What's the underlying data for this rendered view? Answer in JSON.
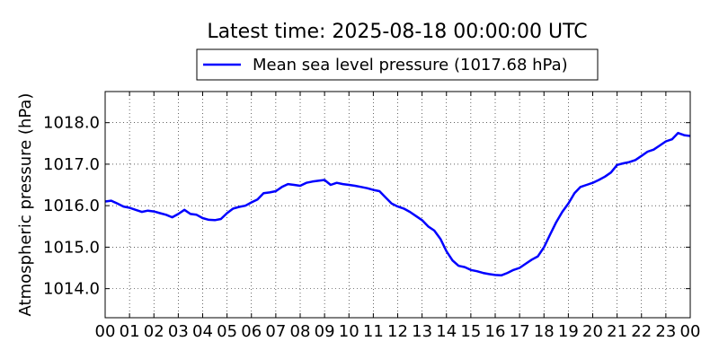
{
  "chart_data": {
    "type": "line",
    "title": "Latest time: 2025-08-18 00:00:00 UTC",
    "xlabel": "",
    "ylabel": "Atmospheric pressure (hPa)",
    "xlim": [
      0,
      24
    ],
    "ylim": [
      1013.3,
      1018.75
    ],
    "x_tick_labels": [
      "00",
      "01",
      "02",
      "03",
      "04",
      "05",
      "06",
      "07",
      "08",
      "09",
      "10",
      "11",
      "12",
      "13",
      "14",
      "15",
      "16",
      "17",
      "18",
      "19",
      "20",
      "21",
      "22",
      "23",
      "00"
    ],
    "y_ticks": [
      1014.0,
      1015.0,
      1016.0,
      1017.0,
      1018.0
    ],
    "y_tick_labels": [
      "1014.0",
      "1015.0",
      "1016.0",
      "1017.0",
      "1018.0"
    ],
    "grid": true,
    "legend_position": "top-center, above plot",
    "series": [
      {
        "name": "Mean sea level pressure (1017.68 hPa)",
        "color": "#0000ff",
        "x": [
          0,
          0.25,
          0.5,
          0.75,
          1.0,
          1.25,
          1.5,
          1.75,
          2.0,
          2.25,
          2.5,
          2.75,
          3.0,
          3.25,
          3.5,
          3.75,
          4.0,
          4.25,
          4.5,
          4.75,
          5.0,
          5.25,
          5.5,
          5.75,
          6.0,
          6.25,
          6.5,
          6.75,
          7.0,
          7.25,
          7.5,
          7.75,
          8.0,
          8.25,
          8.5,
          8.75,
          9.0,
          9.25,
          9.5,
          9.75,
          10.0,
          10.25,
          10.5,
          10.75,
          11.0,
          11.25,
          11.5,
          11.75,
          12.0,
          12.25,
          12.5,
          12.75,
          13.0,
          13.25,
          13.5,
          13.75,
          14.0,
          14.25,
          14.5,
          14.75,
          15.0,
          15.25,
          15.5,
          15.75,
          16.0,
          16.25,
          16.5,
          16.75,
          17.0,
          17.25,
          17.5,
          17.75,
          18.0,
          18.25,
          18.5,
          18.75,
          19.0,
          19.25,
          19.5,
          19.75,
          20.0,
          20.25,
          20.5,
          20.75,
          21.0,
          21.25,
          21.5,
          21.75,
          22.0,
          22.25,
          22.5,
          22.75,
          23.0,
          23.25,
          23.5,
          23.75,
          24.0
        ],
        "values": [
          1016.1,
          1016.12,
          1016.05,
          1015.98,
          1015.95,
          1015.9,
          1015.85,
          1015.88,
          1015.86,
          1015.82,
          1015.78,
          1015.72,
          1015.8,
          1015.9,
          1015.8,
          1015.78,
          1015.7,
          1015.66,
          1015.65,
          1015.68,
          1015.82,
          1015.93,
          1015.97,
          1016.0,
          1016.08,
          1016.15,
          1016.3,
          1016.32,
          1016.35,
          1016.45,
          1016.52,
          1016.5,
          1016.48,
          1016.55,
          1016.58,
          1016.6,
          1016.62,
          1016.5,
          1016.55,
          1016.52,
          1016.5,
          1016.48,
          1016.45,
          1016.42,
          1016.38,
          1016.35,
          1016.2,
          1016.05,
          1015.98,
          1015.93,
          1015.85,
          1015.75,
          1015.65,
          1015.5,
          1015.4,
          1015.2,
          1014.9,
          1014.68,
          1014.55,
          1014.52,
          1014.45,
          1014.42,
          1014.38,
          1014.35,
          1014.33,
          1014.32,
          1014.38,
          1014.45,
          1014.5,
          1014.6,
          1014.7,
          1014.78,
          1015.0,
          1015.3,
          1015.6,
          1015.85,
          1016.05,
          1016.3,
          1016.45,
          1016.5,
          1016.55,
          1016.62,
          1016.7,
          1016.8,
          1016.98,
          1017.02,
          1017.05,
          1017.1,
          1017.2,
          1017.3,
          1017.35,
          1017.45,
          1017.55,
          1017.6,
          1017.75,
          1017.7,
          1017.68
        ]
      }
    ]
  }
}
